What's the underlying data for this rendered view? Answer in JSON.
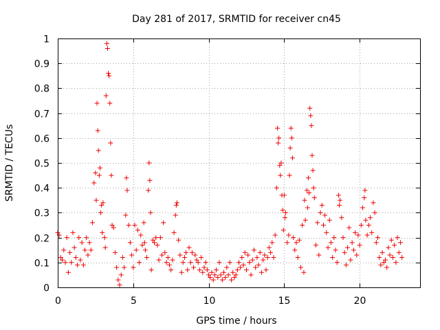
{
  "chart_data": {
    "type": "scatter",
    "title": "Day 281 of 2017, SRMTID for receiver cn45",
    "xlabel": "GPS time / hours",
    "ylabel": "SRMTID / TECUs",
    "xlim": [
      0,
      24
    ],
    "ylim": [
      0,
      1
    ],
    "xticks": [
      0,
      5,
      10,
      15,
      20
    ],
    "xtick_labels": [
      "0",
      "5",
      "10",
      "15",
      "20"
    ],
    "yticks": [
      0,
      0.1,
      0.2,
      0.3,
      0.4,
      0.5,
      0.6,
      0.7,
      0.8,
      0.9,
      1
    ],
    "ytick_labels": [
      "0",
      "0.1",
      "0.2",
      "0.3",
      "0.4",
      "0.5",
      "0.6",
      "0.7",
      "0.8",
      "0.9",
      "1"
    ],
    "grid": true,
    "marker": "+",
    "color": "#ee0000",
    "series": [
      {
        "name": "SRMTID",
        "points": [
          [
            0.0,
            0.22
          ],
          [
            0.1,
            0.21
          ],
          [
            0.2,
            0.12
          ],
          [
            0.3,
            0.11
          ],
          [
            0.4,
            0.15
          ],
          [
            0.5,
            0.1
          ],
          [
            0.6,
            0.2
          ],
          [
            0.7,
            0.06
          ],
          [
            0.8,
            0.14
          ],
          [
            0.9,
            0.1
          ],
          [
            1.0,
            0.22
          ],
          [
            1.1,
            0.16
          ],
          [
            1.2,
            0.12
          ],
          [
            1.3,
            0.09
          ],
          [
            1.4,
            0.2
          ],
          [
            1.5,
            0.11
          ],
          [
            1.6,
            0.18
          ],
          [
            1.7,
            0.09
          ],
          [
            1.8,
            0.15
          ],
          [
            1.9,
            0.2
          ],
          [
            2.0,
            0.13
          ],
          [
            2.1,
            0.18
          ],
          [
            2.2,
            0.15
          ],
          [
            2.3,
            0.26
          ],
          [
            2.4,
            0.42
          ],
          [
            2.5,
            0.46
          ],
          [
            2.55,
            0.35
          ],
          [
            2.6,
            0.74
          ],
          [
            2.65,
            0.63
          ],
          [
            2.7,
            0.55
          ],
          [
            2.75,
            0.45
          ],
          [
            2.8,
            0.48
          ],
          [
            2.85,
            0.3
          ],
          [
            2.9,
            0.33
          ],
          [
            2.95,
            0.22
          ],
          [
            3.0,
            0.34
          ],
          [
            3.1,
            0.2
          ],
          [
            3.15,
            0.16
          ],
          [
            3.2,
            0.77
          ],
          [
            3.25,
            0.98
          ],
          [
            3.3,
            0.96
          ],
          [
            3.35,
            0.86
          ],
          [
            3.4,
            0.85
          ],
          [
            3.45,
            0.74
          ],
          [
            3.5,
            0.58
          ],
          [
            3.55,
            0.45
          ],
          [
            3.6,
            0.25
          ],
          [
            3.7,
            0.24
          ],
          [
            3.8,
            0.14
          ],
          [
            3.9,
            0.08
          ],
          [
            4.0,
            0.03
          ],
          [
            4.1,
            0.01
          ],
          [
            4.2,
            0.05
          ],
          [
            4.3,
            0.12
          ],
          [
            4.4,
            0.08
          ],
          [
            4.5,
            0.29
          ],
          [
            4.55,
            0.44
          ],
          [
            4.6,
            0.39
          ],
          [
            4.7,
            0.25
          ],
          [
            4.8,
            0.18
          ],
          [
            4.9,
            0.13
          ],
          [
            5.0,
            0.08
          ],
          [
            5.1,
            0.25
          ],
          [
            5.2,
            0.15
          ],
          [
            5.3,
            0.23
          ],
          [
            5.4,
            0.1
          ],
          [
            5.5,
            0.21
          ],
          [
            5.6,
            0.17
          ],
          [
            5.7,
            0.26
          ],
          [
            5.75,
            0.18
          ],
          [
            5.8,
            0.15
          ],
          [
            5.9,
            0.12
          ],
          [
            6.0,
            0.39
          ],
          [
            6.05,
            0.5
          ],
          [
            6.1,
            0.43
          ],
          [
            6.15,
            0.3
          ],
          [
            6.2,
            0.07
          ],
          [
            6.3,
            0.19
          ],
          [
            6.4,
            0.18
          ],
          [
            6.5,
            0.2
          ],
          [
            6.6,
            0.17
          ],
          [
            6.7,
            0.11
          ],
          [
            6.8,
            0.2
          ],
          [
            6.9,
            0.13
          ],
          [
            7.0,
            0.26
          ],
          [
            7.1,
            0.14
          ],
          [
            7.2,
            0.1
          ],
          [
            7.3,
            0.12
          ],
          [
            7.4,
            0.09
          ],
          [
            7.5,
            0.07
          ],
          [
            7.6,
            0.11
          ],
          [
            7.7,
            0.22
          ],
          [
            7.8,
            0.29
          ],
          [
            7.85,
            0.33
          ],
          [
            7.9,
            0.34
          ],
          [
            8.0,
            0.19
          ],
          [
            8.1,
            0.13
          ],
          [
            8.2,
            0.06
          ],
          [
            8.3,
            0.1
          ],
          [
            8.4,
            0.12
          ],
          [
            8.5,
            0.14
          ],
          [
            8.6,
            0.07
          ],
          [
            8.7,
            0.16
          ],
          [
            8.8,
            0.1
          ],
          [
            8.9,
            0.14
          ],
          [
            9.0,
            0.08
          ],
          [
            9.1,
            0.13
          ],
          [
            9.2,
            0.11
          ],
          [
            9.3,
            0.1
          ],
          [
            9.4,
            0.07
          ],
          [
            9.5,
            0.12
          ],
          [
            9.6,
            0.06
          ],
          [
            9.7,
            0.08
          ],
          [
            9.8,
            0.1
          ],
          [
            9.9,
            0.07
          ],
          [
            10.0,
            0.05
          ],
          [
            10.1,
            0.04
          ],
          [
            10.2,
            0.06
          ],
          [
            10.3,
            0.03
          ],
          [
            10.4,
            0.05
          ],
          [
            10.5,
            0.07
          ],
          [
            10.6,
            0.04
          ],
          [
            10.7,
            0.1
          ],
          [
            10.8,
            0.05
          ],
          [
            10.9,
            0.03
          ],
          [
            11.0,
            0.06
          ],
          [
            11.1,
            0.04
          ],
          [
            11.2,
            0.08
          ],
          [
            11.3,
            0.05
          ],
          [
            11.4,
            0.1
          ],
          [
            11.5,
            0.03
          ],
          [
            11.6,
            0.06
          ],
          [
            11.7,
            0.04
          ],
          [
            11.8,
            0.05
          ],
          [
            11.9,
            0.07
          ],
          [
            12.0,
            0.1
          ],
          [
            12.1,
            0.08
          ],
          [
            12.2,
            0.12
          ],
          [
            12.3,
            0.09
          ],
          [
            12.4,
            0.14
          ],
          [
            12.5,
            0.07
          ],
          [
            12.6,
            0.13
          ],
          [
            12.7,
            0.1
          ],
          [
            12.8,
            0.05
          ],
          [
            12.9,
            0.11
          ],
          [
            13.0,
            0.15
          ],
          [
            13.1,
            0.08
          ],
          [
            13.2,
            0.12
          ],
          [
            13.3,
            0.09
          ],
          [
            13.4,
            0.14
          ],
          [
            13.5,
            0.06
          ],
          [
            13.6,
            0.11
          ],
          [
            13.7,
            0.13
          ],
          [
            13.8,
            0.07
          ],
          [
            13.9,
            0.12
          ],
          [
            14.0,
            0.16
          ],
          [
            14.1,
            0.14
          ],
          [
            14.2,
            0.18
          ],
          [
            14.3,
            0.12
          ],
          [
            14.4,
            0.21
          ],
          [
            14.5,
            0.4
          ],
          [
            14.55,
            0.64
          ],
          [
            14.6,
            0.58
          ],
          [
            14.65,
            0.6
          ],
          [
            14.7,
            0.49
          ],
          [
            14.75,
            0.45
          ],
          [
            14.8,
            0.5
          ],
          [
            14.85,
            0.37
          ],
          [
            14.9,
            0.31
          ],
          [
            14.95,
            0.23
          ],
          [
            15.0,
            0.37
          ],
          [
            15.05,
            0.28
          ],
          [
            15.1,
            0.3
          ],
          [
            15.2,
            0.18
          ],
          [
            15.3,
            0.21
          ],
          [
            15.35,
            0.45
          ],
          [
            15.4,
            0.56
          ],
          [
            15.45,
            0.64
          ],
          [
            15.5,
            0.6
          ],
          [
            15.55,
            0.52
          ],
          [
            15.6,
            0.2
          ],
          [
            15.7,
            0.15
          ],
          [
            15.8,
            0.18
          ],
          [
            15.9,
            0.12
          ],
          [
            16.0,
            0.19
          ],
          [
            16.1,
            0.08
          ],
          [
            16.2,
            0.25
          ],
          [
            16.3,
            0.06
          ],
          [
            16.35,
            0.35
          ],
          [
            16.4,
            0.27
          ],
          [
            16.5,
            0.39
          ],
          [
            16.55,
            0.32
          ],
          [
            16.6,
            0.44
          ],
          [
            16.65,
            0.38
          ],
          [
            16.7,
            0.72
          ],
          [
            16.75,
            0.69
          ],
          [
            16.8,
            0.65
          ],
          [
            16.85,
            0.53
          ],
          [
            16.9,
            0.47
          ],
          [
            16.95,
            0.4
          ],
          [
            17.0,
            0.36
          ],
          [
            17.1,
            0.17
          ],
          [
            17.2,
            0.26
          ],
          [
            17.3,
            0.13
          ],
          [
            17.4,
            0.3
          ],
          [
            17.5,
            0.33
          ],
          [
            17.6,
            0.25
          ],
          [
            17.7,
            0.29
          ],
          [
            17.8,
            0.22
          ],
          [
            17.9,
            0.16
          ],
          [
            18.0,
            0.27
          ],
          [
            18.1,
            0.18
          ],
          [
            18.2,
            0.12
          ],
          [
            18.3,
            0.2
          ],
          [
            18.4,
            0.15
          ],
          [
            18.5,
            0.1
          ],
          [
            18.6,
            0.37
          ],
          [
            18.65,
            0.33
          ],
          [
            18.7,
            0.35
          ],
          [
            18.8,
            0.28
          ],
          [
            18.9,
            0.2
          ],
          [
            19.0,
            0.14
          ],
          [
            19.1,
            0.09
          ],
          [
            19.2,
            0.16
          ],
          [
            19.3,
            0.24
          ],
          [
            19.4,
            0.11
          ],
          [
            19.5,
            0.18
          ],
          [
            19.6,
            0.15
          ],
          [
            19.7,
            0.22
          ],
          [
            19.8,
            0.13
          ],
          [
            19.9,
            0.21
          ],
          [
            20.0,
            0.17
          ],
          [
            20.1,
            0.25
          ],
          [
            20.2,
            0.32
          ],
          [
            20.3,
            0.36
          ],
          [
            20.35,
            0.39
          ],
          [
            20.4,
            0.27
          ],
          [
            20.5,
            0.21
          ],
          [
            20.6,
            0.25
          ],
          [
            20.7,
            0.28
          ],
          [
            20.8,
            0.22
          ],
          [
            20.9,
            0.34
          ],
          [
            21.0,
            0.3
          ],
          [
            21.1,
            0.18
          ],
          [
            21.2,
            0.2
          ],
          [
            21.3,
            0.12
          ],
          [
            21.4,
            0.09
          ],
          [
            21.5,
            0.14
          ],
          [
            21.6,
            0.1
          ],
          [
            21.7,
            0.11
          ],
          [
            21.8,
            0.08
          ],
          [
            21.9,
            0.16
          ],
          [
            22.0,
            0.13
          ],
          [
            22.1,
            0.19
          ],
          [
            22.2,
            0.12
          ],
          [
            22.3,
            0.17
          ],
          [
            22.4,
            0.1
          ],
          [
            22.5,
            0.2
          ],
          [
            22.6,
            0.14
          ],
          [
            22.7,
            0.18
          ],
          [
            22.8,
            0.12
          ]
        ]
      }
    ]
  }
}
